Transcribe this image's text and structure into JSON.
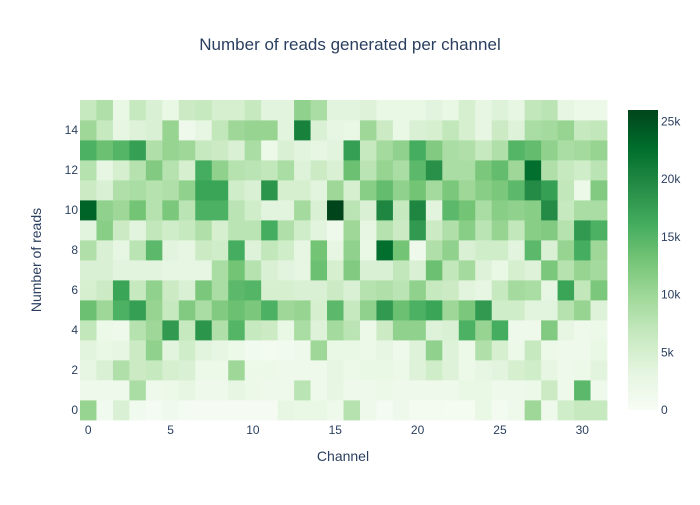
{
  "chart_data": {
    "type": "heatmap",
    "title": "Number of reads generated per channel",
    "xlabel": "Channel",
    "ylabel": "Number of reads",
    "x": [
      0,
      1,
      2,
      3,
      4,
      5,
      6,
      7,
      8,
      9,
      10,
      11,
      12,
      13,
      14,
      15,
      16,
      17,
      18,
      19,
      20,
      21,
      22,
      23,
      24,
      25,
      26,
      27,
      28,
      29,
      30,
      31
    ],
    "y": [
      0,
      1,
      2,
      3,
      4,
      5,
      6,
      7,
      8,
      9,
      10,
      11,
      12,
      13,
      14,
      15
    ],
    "x_ticks": [
      0,
      5,
      10,
      15,
      20,
      25,
      30
    ],
    "y_ticks": [
      0,
      2,
      4,
      6,
      8,
      10,
      12,
      14
    ],
    "colorscale": "Greens",
    "zlim": [
      0,
      26000
    ],
    "colorbar_ticks": [
      {
        "value": 0,
        "label": "0"
      },
      {
        "value": 5000,
        "label": "5k"
      },
      {
        "value": 10000,
        "label": "10k"
      },
      {
        "value": 15000,
        "label": "15k"
      },
      {
        "value": 20000,
        "label": "20k"
      },
      {
        "value": 25000,
        "label": "25k"
      }
    ],
    "z": [
      [
        10500,
        1000,
        4500,
        1000,
        500,
        1200,
        500,
        400,
        300,
        300,
        400,
        400,
        3000,
        2500,
        2500,
        1500,
        8000,
        1500,
        500,
        1500,
        800,
        700,
        600,
        600,
        2500,
        800,
        1500,
        10000,
        1500,
        5500,
        6500,
        6500
      ],
      [
        1500,
        1500,
        1500,
        9000,
        1500,
        2000,
        3000,
        1500,
        1500,
        3000,
        2000,
        1500,
        1500,
        7500,
        1500,
        3000,
        1500,
        1500,
        2000,
        1500,
        1500,
        1500,
        1500,
        2500,
        2500,
        1500,
        1500,
        2000,
        6000,
        1500,
        14500,
        1500
      ],
      [
        3000,
        4500,
        8500,
        6000,
        6500,
        5000,
        4500,
        2000,
        2000,
        10000,
        2000,
        2000,
        1500,
        1500,
        1500,
        3000,
        2000,
        2500,
        2500,
        2000,
        4000,
        5500,
        4000,
        2000,
        3000,
        3500,
        5000,
        5500,
        3000,
        1500,
        2000,
        3500
      ],
      [
        3500,
        2500,
        3000,
        6000,
        11000,
        3500,
        5500,
        3500,
        3000,
        2000,
        1000,
        800,
        1000,
        1500,
        10000,
        2500,
        2500,
        2000,
        3000,
        1500,
        4000,
        11000,
        4000,
        2000,
        8500,
        5000,
        2000,
        6500,
        2000,
        1500,
        1500,
        2500
      ],
      [
        7000,
        2000,
        1500,
        8000,
        10000,
        18000,
        6500,
        18500,
        8500,
        15000,
        6500,
        6000,
        2500,
        9000,
        4000,
        9500,
        7500,
        2000,
        6000,
        11000,
        11000,
        4000,
        4500,
        15500,
        10500,
        16000,
        1500,
        1500,
        12000,
        3000,
        1500,
        2000
      ],
      [
        13500,
        10000,
        15500,
        17500,
        10500,
        6500,
        12000,
        9000,
        12000,
        13500,
        12500,
        15500,
        10000,
        10500,
        5000,
        14500,
        6500,
        11000,
        18000,
        13500,
        15500,
        17000,
        10000,
        12500,
        18000,
        5500,
        5500,
        3500,
        3500,
        8000,
        10500,
        4000
      ],
      [
        5000,
        6000,
        17000,
        6500,
        11000,
        6000,
        4500,
        12500,
        9000,
        14500,
        15000,
        5000,
        5000,
        4500,
        4500,
        6000,
        4500,
        8000,
        8500,
        7500,
        11000,
        6500,
        6000,
        3500,
        3000,
        6500,
        9500,
        9000,
        3000,
        17000,
        7000,
        12500
      ],
      [
        4500,
        4500,
        3500,
        3500,
        3500,
        3000,
        3000,
        3000,
        9000,
        13000,
        8000,
        4500,
        3500,
        3000,
        13500,
        5000,
        12000,
        4500,
        4500,
        7000,
        4500,
        13500,
        7000,
        9500,
        4000,
        2500,
        5000,
        4000,
        12500,
        8000,
        10500,
        9500
      ],
      [
        8500,
        4500,
        3000,
        7500,
        14500,
        3500,
        3000,
        6000,
        5500,
        16000,
        4000,
        7000,
        5500,
        3000,
        13000,
        3000,
        11000,
        2500,
        22500,
        13000,
        1500,
        8500,
        11000,
        4500,
        5500,
        5500,
        3500,
        14500,
        4500,
        10500,
        16000,
        10000
      ],
      [
        3500,
        11500,
        6000,
        3500,
        7000,
        5500,
        6500,
        8500,
        5000,
        7500,
        7500,
        16000,
        8500,
        5500,
        3500,
        1500,
        10000,
        3000,
        8000,
        6000,
        18000,
        6000,
        8500,
        11500,
        7500,
        10500,
        7000,
        11500,
        12000,
        8000,
        18000,
        15500
      ],
      [
        23500,
        11000,
        10000,
        13000,
        8000,
        12500,
        7500,
        15500,
        15500,
        7500,
        5500,
        3500,
        3500,
        9500,
        4500,
        26000,
        7500,
        4500,
        20000,
        6500,
        20000,
        3500,
        14500,
        13000,
        9000,
        11500,
        11000,
        11500,
        19500,
        6500,
        9000,
        9000
      ],
      [
        6000,
        4500,
        8500,
        9000,
        8000,
        8500,
        11000,
        17000,
        17000,
        5500,
        4500,
        18500,
        5000,
        5000,
        3500,
        10000,
        5000,
        11500,
        14000,
        11000,
        13000,
        9500,
        12500,
        10000,
        11500,
        12500,
        14500,
        19500,
        17500,
        7000,
        2000,
        12000
      ],
      [
        8000,
        3000,
        5000,
        8000,
        12000,
        8000,
        5000,
        16000,
        11000,
        8000,
        7500,
        7000,
        9000,
        4000,
        6000,
        4500,
        13500,
        7500,
        10500,
        9000,
        14500,
        19000,
        9000,
        9000,
        12500,
        14000,
        10000,
        22500,
        8500,
        6500,
        5500,
        7500
      ],
      [
        15500,
        13500,
        15000,
        17500,
        8500,
        10500,
        10000,
        6500,
        6000,
        4500,
        9000,
        2000,
        4500,
        3500,
        3000,
        3500,
        17500,
        6500,
        9500,
        11000,
        16000,
        12000,
        9000,
        8500,
        6500,
        8500,
        15000,
        14000,
        11000,
        9000,
        9500,
        10500
      ],
      [
        10000,
        6500,
        3000,
        4000,
        4500,
        10500,
        1500,
        3000,
        7000,
        10000,
        10500,
        10500,
        3500,
        20500,
        4500,
        3000,
        2500,
        10000,
        6000,
        2500,
        4500,
        5000,
        7000,
        5000,
        3000,
        6000,
        4000,
        9000,
        9500,
        10500,
        6500,
        7000
      ],
      [
        6500,
        8500,
        2500,
        6500,
        4500,
        2500,
        6000,
        6500,
        5000,
        5000,
        6500,
        3500,
        3500,
        11000,
        9000,
        3500,
        3500,
        4000,
        2500,
        2500,
        2500,
        3500,
        2500,
        5000,
        3000,
        4000,
        3000,
        7000,
        7500,
        3000,
        2000,
        2000
      ]
    ]
  }
}
